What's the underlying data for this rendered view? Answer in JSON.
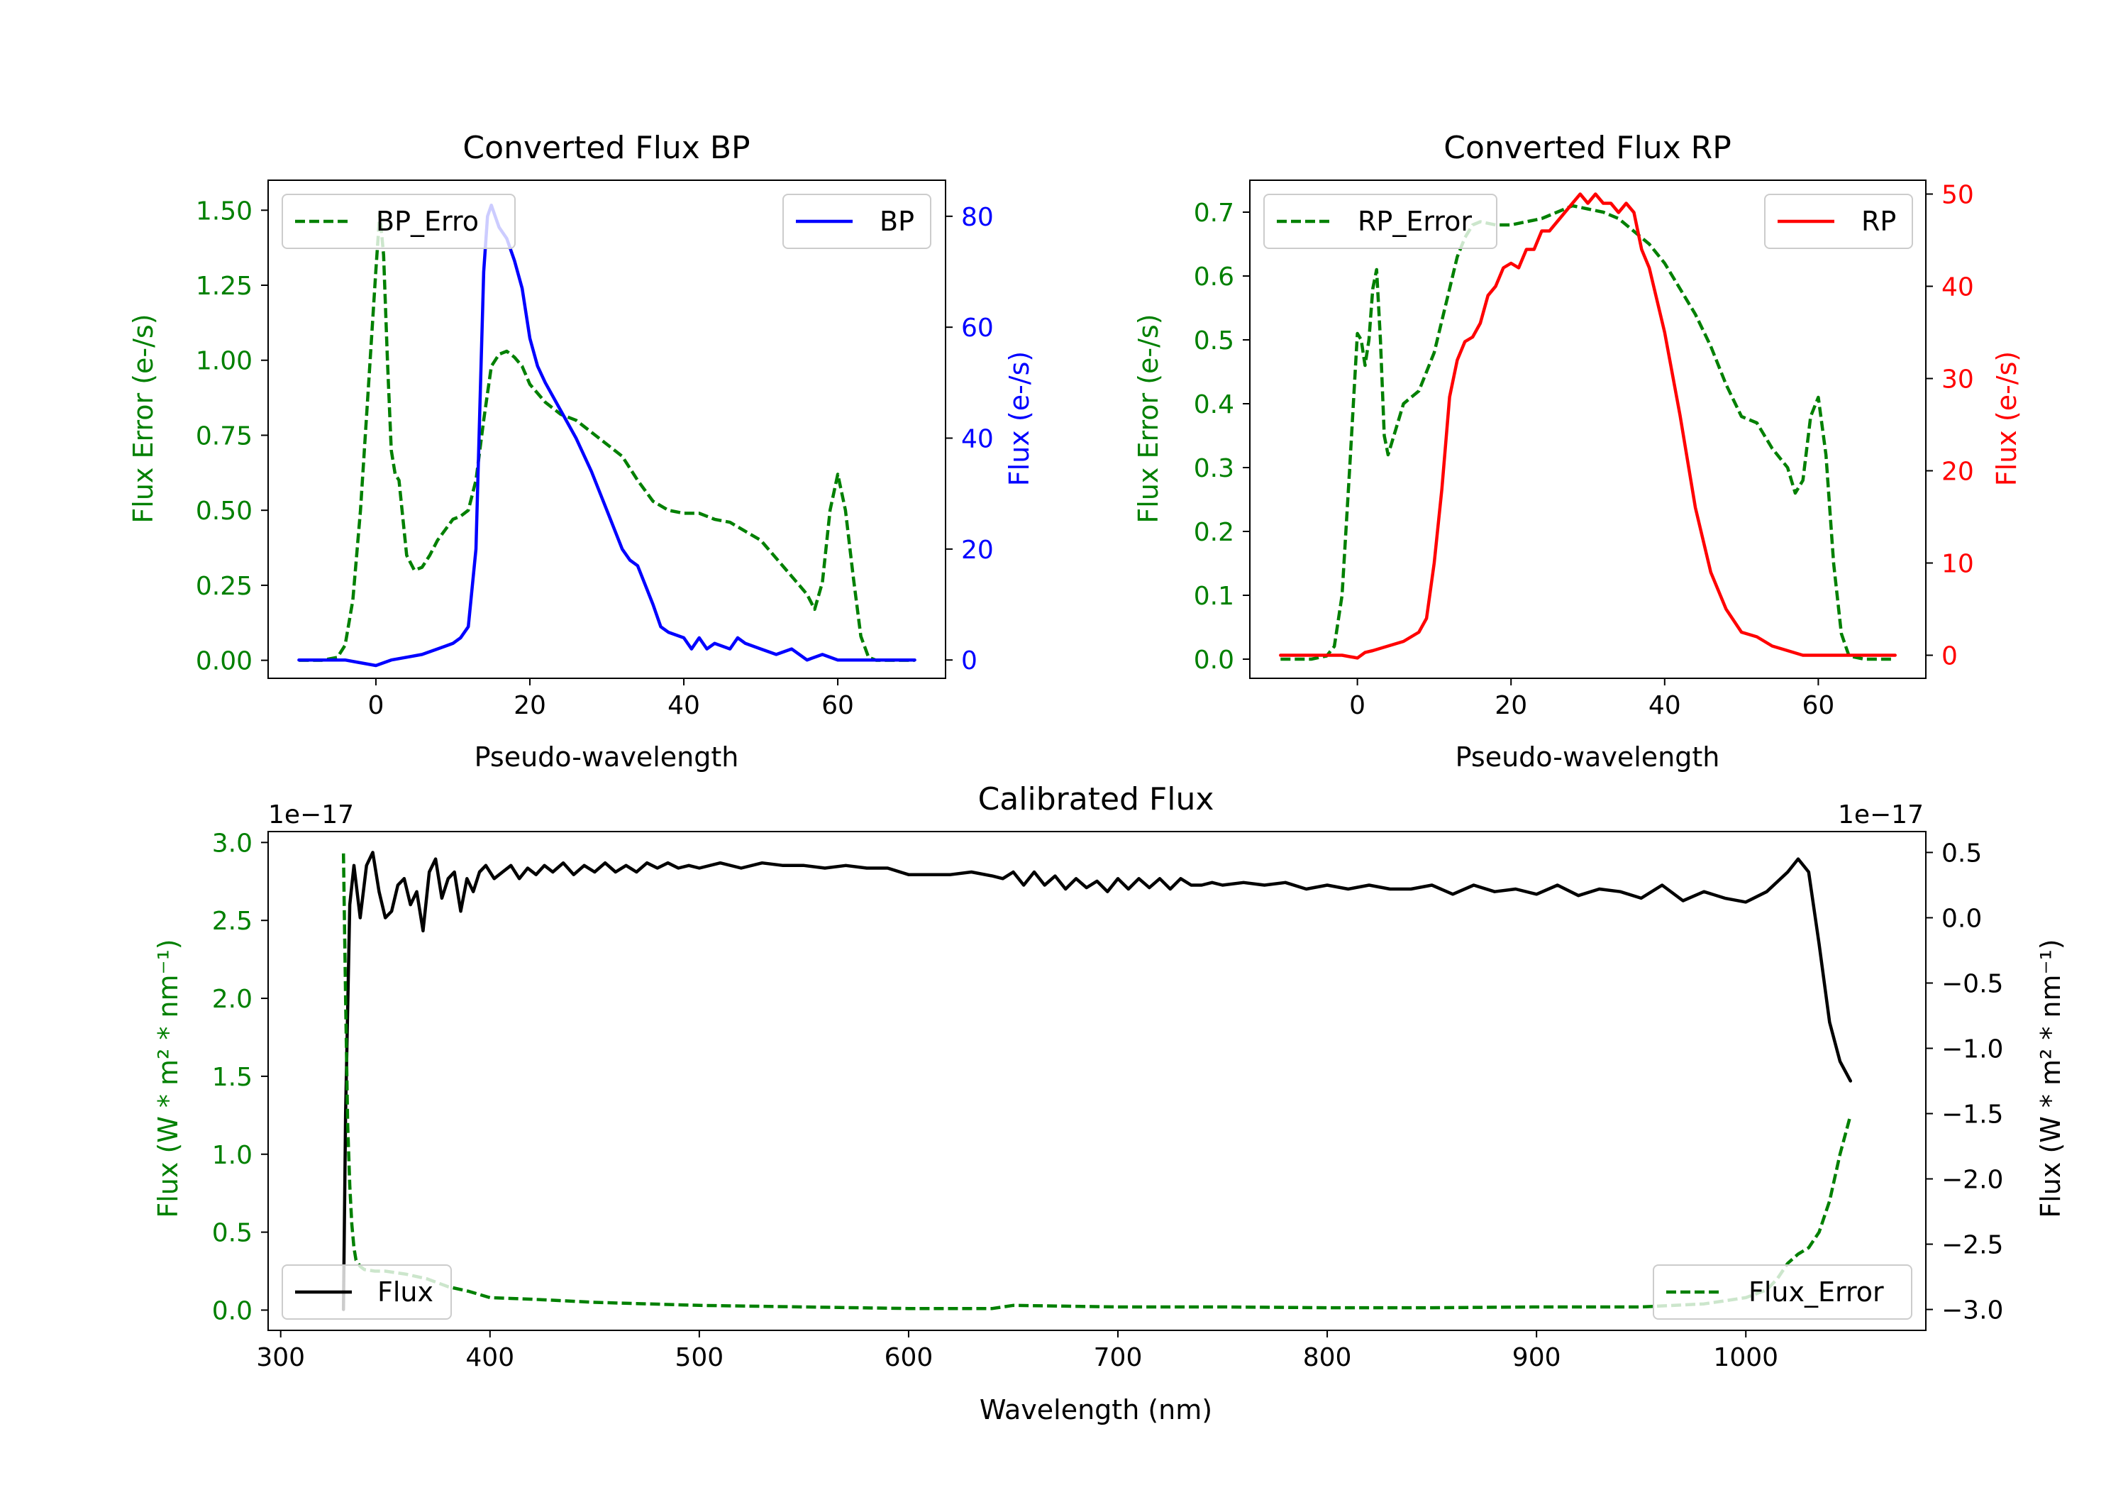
{
  "chart_data": [
    {
      "type": "line",
      "id": "bp",
      "title": "Converted Flux BP",
      "xlabel": "Pseudo-wavelength",
      "ylabel_left": "Flux Error (e-/s)",
      "ylabel_right": "Flux (e-/s)",
      "xlim": [
        -14,
        74
      ],
      "ylim_left": [
        -0.06,
        1.6
      ],
      "ylim_right": [
        -3.3,
        86.5
      ],
      "xticks": [
        0,
        20,
        40,
        60
      ],
      "yticks_left": [
        0.0,
        0.25,
        0.5,
        0.75,
        1.0,
        1.25,
        1.5
      ],
      "yticks_left_labels": [
        "0.00",
        "0.25",
        "0.50",
        "0.75",
        "1.00",
        "1.25",
        "1.50"
      ],
      "yticks_right": [
        0,
        20,
        40,
        60,
        80
      ],
      "yticks_right_labels": [
        "0",
        "20",
        "40",
        "60",
        "80"
      ],
      "left_axis_color": "#008000",
      "right_axis_color": "#0000ff",
      "series": [
        {
          "name": "BP_Error",
          "axis": "left",
          "style": "dashed",
          "color": "#008000",
          "x": [
            -10,
            -7,
            -5,
            -4,
            -3,
            -2,
            -1,
            0,
            0.5,
            1,
            1.5,
            2,
            2.5,
            3,
            4,
            5,
            6,
            7,
            8,
            10,
            11,
            12,
            13,
            14,
            15,
            16,
            17,
            18,
            19,
            20,
            22,
            24,
            26,
            28,
            30,
            32,
            34,
            36,
            38,
            40,
            42,
            44,
            46,
            48,
            50,
            52,
            54,
            56,
            57,
            58,
            59,
            60,
            61,
            62,
            63,
            64,
            65,
            66,
            70
          ],
          "y": [
            0.0,
            0.0,
            0.01,
            0.05,
            0.2,
            0.5,
            0.9,
            1.3,
            1.49,
            1.35,
            1.0,
            0.7,
            0.62,
            0.6,
            0.35,
            0.3,
            0.31,
            0.35,
            0.4,
            0.47,
            0.48,
            0.5,
            0.6,
            0.8,
            0.98,
            1.02,
            1.03,
            1.01,
            0.98,
            0.92,
            0.86,
            0.82,
            0.8,
            0.76,
            0.72,
            0.68,
            0.6,
            0.53,
            0.5,
            0.49,
            0.49,
            0.47,
            0.46,
            0.43,
            0.4,
            0.34,
            0.28,
            0.22,
            0.17,
            0.26,
            0.5,
            0.62,
            0.5,
            0.28,
            0.08,
            0.01,
            0.0,
            0.0,
            0.0
          ]
        },
        {
          "name": "BP",
          "axis": "right",
          "style": "solid",
          "color": "#0000ff",
          "x": [
            -10,
            -6,
            -4,
            -2,
            0,
            2,
            4,
            6,
            8,
            9,
            10,
            11,
            12,
            13,
            13.5,
            14,
            14.5,
            15,
            15.5,
            16,
            17,
            18,
            19,
            20,
            21,
            22,
            24,
            26,
            28,
            30,
            32,
            33,
            34,
            36,
            37,
            38,
            40,
            41,
            42,
            43,
            44,
            46,
            47,
            48,
            50,
            52,
            54,
            56,
            58,
            60,
            62,
            64,
            66,
            70
          ],
          "y": [
            0,
            0,
            0,
            -0.5,
            -1,
            0,
            0.5,
            1,
            2,
            2.5,
            3,
            4,
            6,
            20,
            45,
            70,
            80,
            82,
            80,
            78,
            76,
            72,
            67,
            58,
            53,
            50,
            45,
            40,
            34,
            27,
            20,
            18,
            17,
            10,
            6,
            5,
            4,
            2,
            4,
            2,
            3,
            2,
            4,
            3,
            2,
            1,
            2,
            0,
            1,
            0,
            0,
            0,
            0,
            0
          ]
        }
      ],
      "legends": [
        {
          "position": "upper-left",
          "label": "BP_Erro",
          "series": "BP_Error"
        },
        {
          "position": "upper-right",
          "label": "BP",
          "series": "BP"
        }
      ]
    },
    {
      "type": "line",
      "id": "rp",
      "title": "Converted Flux RP",
      "xlabel": "Pseudo-wavelength",
      "ylabel_left": "Flux Error (e-/s)",
      "ylabel_right": "Flux (e-/s)",
      "xlim": [
        -14,
        74
      ],
      "ylim_left": [
        -0.03,
        0.75
      ],
      "ylim_right": [
        -2.5,
        51.5
      ],
      "xticks": [
        0,
        20,
        40,
        60
      ],
      "yticks_left": [
        0.0,
        0.1,
        0.2,
        0.3,
        0.4,
        0.5,
        0.6,
        0.7
      ],
      "yticks_left_labels": [
        "0.0",
        "0.1",
        "0.2",
        "0.3",
        "0.4",
        "0.5",
        "0.6",
        "0.7"
      ],
      "yticks_right": [
        0,
        10,
        20,
        30,
        40,
        50
      ],
      "yticks_right_labels": [
        "0",
        "10",
        "20",
        "30",
        "40",
        "50"
      ],
      "left_axis_color": "#008000",
      "right_axis_color": "#ff0000",
      "series": [
        {
          "name": "RP_Error",
          "axis": "left",
          "style": "dashed",
          "color": "#008000",
          "x": [
            -10,
            -6,
            -4,
            -3,
            -2,
            -1,
            0,
            0.5,
            1,
            1.5,
            2,
            2.5,
            3,
            3.5,
            4,
            5,
            6,
            7,
            8,
            9,
            10,
            11,
            12,
            13,
            14,
            15,
            16,
            18,
            20,
            22,
            24,
            26,
            28,
            30,
            32,
            34,
            36,
            38,
            40,
            42,
            44,
            46,
            48,
            50,
            52,
            54,
            56,
            57,
            58,
            59,
            60,
            61,
            62,
            63,
            64,
            66,
            70
          ],
          "y": [
            0,
            0,
            0.005,
            0.02,
            0.1,
            0.3,
            0.51,
            0.5,
            0.46,
            0.5,
            0.58,
            0.61,
            0.5,
            0.35,
            0.32,
            0.36,
            0.4,
            0.41,
            0.42,
            0.45,
            0.48,
            0.53,
            0.58,
            0.63,
            0.66,
            0.68,
            0.685,
            0.68,
            0.68,
            0.685,
            0.69,
            0.7,
            0.71,
            0.705,
            0.7,
            0.69,
            0.67,
            0.65,
            0.62,
            0.58,
            0.54,
            0.49,
            0.43,
            0.38,
            0.37,
            0.33,
            0.3,
            0.26,
            0.28,
            0.38,
            0.41,
            0.32,
            0.15,
            0.04,
            0.005,
            0,
            0
          ]
        },
        {
          "name": "RP",
          "axis": "right",
          "style": "solid",
          "color": "#ff0000",
          "x": [
            -10,
            -6,
            -4,
            -2,
            0,
            1,
            2,
            4,
            6,
            8,
            9,
            10,
            11,
            12,
            13,
            14,
            15,
            16,
            17,
            18,
            19,
            20,
            21,
            22,
            23,
            24,
            25,
            26,
            27,
            28,
            29,
            30,
            31,
            32,
            33,
            34,
            35,
            36,
            37,
            38,
            40,
            42,
            44,
            46,
            48,
            50,
            52,
            54,
            56,
            58,
            60,
            62,
            64,
            66,
            70
          ],
          "y": [
            0,
            0,
            0,
            0,
            -0.3,
            0.3,
            0.5,
            1,
            1.5,
            2.5,
            4,
            10,
            18,
            28,
            32,
            34,
            34.5,
            36,
            39,
            40,
            42,
            42.5,
            42,
            44,
            44,
            46,
            46,
            47,
            48,
            49,
            50,
            49,
            50,
            49,
            49,
            48,
            49,
            48,
            44,
            42,
            35,
            26,
            16,
            9,
            5,
            2.5,
            2,
            1,
            0.5,
            0,
            0,
            0,
            0,
            0,
            0
          ]
        }
      ],
      "legends": [
        {
          "position": "upper-left",
          "label": "RP_Error",
          "series": "RP_Error"
        },
        {
          "position": "upper-right",
          "label": "RP",
          "series": "RP"
        }
      ]
    },
    {
      "type": "line",
      "id": "cal",
      "title": "Calibrated Flux",
      "xlabel": "Wavelength (nm)",
      "ylabel_left": "Flux (W * m² * nm⁻¹)",
      "ylabel_right": "Flux (W * m² * nm⁻¹)",
      "scale_left": "1e−17",
      "scale_right": "1e−17",
      "xlim": [
        294,
        1086
      ],
      "ylim_left": [
        -0.13,
        3.07
      ],
      "ylim_right": [
        -3.16,
        0.66
      ],
      "xticks": [
        300,
        400,
        500,
        600,
        700,
        800,
        900,
        1000
      ],
      "yticks_left": [
        0.0,
        0.5,
        1.0,
        1.5,
        2.0,
        2.5,
        3.0
      ],
      "yticks_left_labels": [
        "0.0",
        "0.5",
        "1.0",
        "1.5",
        "2.0",
        "2.5",
        "3.0"
      ],
      "yticks_right": [
        0.5,
        0.0,
        -0.5,
        -1.0,
        -1.5,
        -2.0,
        -2.5,
        -3.0
      ],
      "yticks_right_labels": [
        "0.5",
        "0.0",
        "−0.5",
        "−1.0",
        "−1.5",
        "−2.0",
        "−2.5",
        "−3.0"
      ],
      "left_axis_color": "#008000",
      "right_axis_color": "#000000",
      "series": [
        {
          "name": "Flux",
          "axis": "right",
          "style": "solid",
          "color": "#000000",
          "x": [
            330,
            331,
            333,
            335,
            338,
            341,
            344,
            347,
            350,
            353,
            356,
            359,
            362,
            365,
            368,
            371,
            374,
            377,
            380,
            383,
            386,
            389,
            392,
            395,
            398,
            402,
            406,
            410,
            414,
            418,
            422,
            426,
            430,
            435,
            440,
            445,
            450,
            455,
            460,
            465,
            470,
            475,
            480,
            485,
            490,
            495,
            500,
            510,
            520,
            530,
            540,
            550,
            560,
            570,
            580,
            590,
            600,
            610,
            620,
            630,
            640,
            645,
            650,
            655,
            660,
            665,
            670,
            675,
            680,
            685,
            690,
            695,
            700,
            705,
            710,
            715,
            720,
            725,
            730,
            735,
            740,
            745,
            750,
            760,
            770,
            780,
            790,
            800,
            810,
            820,
            830,
            840,
            850,
            860,
            870,
            880,
            890,
            900,
            910,
            920,
            930,
            940,
            950,
            960,
            970,
            980,
            990,
            1000,
            1010,
            1020,
            1025,
            1030,
            1035,
            1040,
            1045,
            1050
          ],
          "y": [
            -3.0,
            -1.5,
            0.1,
            0.4,
            0.0,
            0.4,
            0.5,
            0.2,
            0.0,
            0.05,
            0.25,
            0.3,
            0.1,
            0.2,
            -0.1,
            0.35,
            0.45,
            0.15,
            0.3,
            0.35,
            0.05,
            0.3,
            0.2,
            0.35,
            0.4,
            0.3,
            0.35,
            0.4,
            0.3,
            0.38,
            0.33,
            0.4,
            0.35,
            0.42,
            0.33,
            0.4,
            0.35,
            0.42,
            0.35,
            0.4,
            0.35,
            0.42,
            0.38,
            0.42,
            0.38,
            0.4,
            0.38,
            0.42,
            0.38,
            0.42,
            0.4,
            0.4,
            0.38,
            0.4,
            0.38,
            0.38,
            0.33,
            0.33,
            0.33,
            0.35,
            0.32,
            0.3,
            0.35,
            0.25,
            0.35,
            0.25,
            0.32,
            0.22,
            0.3,
            0.23,
            0.28,
            0.2,
            0.3,
            0.22,
            0.3,
            0.23,
            0.3,
            0.22,
            0.3,
            0.25,
            0.25,
            0.27,
            0.25,
            0.27,
            0.25,
            0.27,
            0.22,
            0.25,
            0.22,
            0.25,
            0.22,
            0.22,
            0.25,
            0.18,
            0.25,
            0.2,
            0.22,
            0.18,
            0.25,
            0.17,
            0.22,
            0.2,
            0.15,
            0.25,
            0.13,
            0.2,
            0.15,
            0.12,
            0.2,
            0.35,
            0.45,
            0.35,
            -0.2,
            -0.8,
            -1.1,
            -1.25
          ]
        },
        {
          "name": "Flux_Error",
          "axis": "left",
          "style": "dashed",
          "color": "#008000",
          "x": [
            330,
            331,
            332,
            333,
            334,
            335,
            336,
            338,
            340,
            345,
            350,
            360,
            370,
            380,
            390,
            400,
            420,
            450,
            500,
            550,
            600,
            640,
            650,
            700,
            750,
            800,
            850,
            900,
            950,
            980,
            1000,
            1010,
            1015,
            1020,
            1025,
            1030,
            1035,
            1040,
            1045,
            1050
          ],
          "y": [
            2.93,
            2.0,
            1.2,
            0.8,
            0.55,
            0.4,
            0.32,
            0.28,
            0.26,
            0.25,
            0.25,
            0.23,
            0.2,
            0.15,
            0.12,
            0.08,
            0.07,
            0.05,
            0.03,
            0.02,
            0.01,
            0.01,
            0.03,
            0.02,
            0.02,
            0.015,
            0.015,
            0.02,
            0.02,
            0.04,
            0.08,
            0.13,
            0.2,
            0.3,
            0.36,
            0.4,
            0.5,
            0.7,
            1.0,
            1.25
          ]
        }
      ],
      "legends": [
        {
          "position": "lower-left",
          "label": "Flux",
          "series": "Flux"
        },
        {
          "position": "lower-right",
          "label": "Flux_Error",
          "series": "Flux_Error"
        }
      ]
    }
  ]
}
